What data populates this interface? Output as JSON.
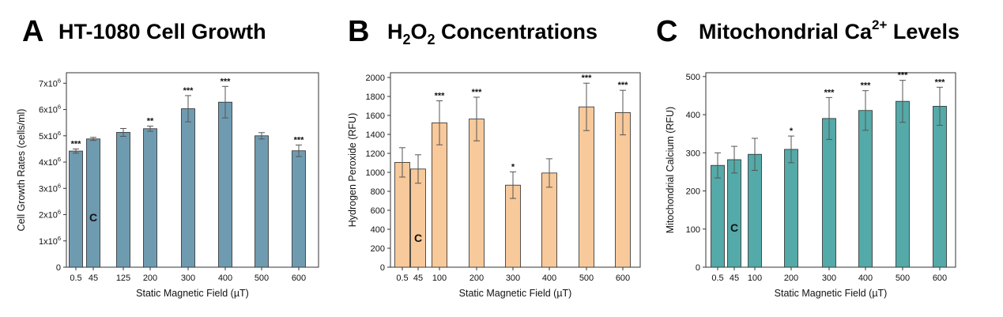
{
  "chart_data": [
    {
      "type": "bar",
      "panel": "A",
      "title": "HT-1080 Cell Growth",
      "xlabel": "Static Magnetic Field (µT)",
      "ylabel": "Cell Growth Rates (cells/ml)",
      "categories": [
        "0.5",
        "45",
        "125",
        "200",
        "300",
        "400",
        "500",
        "600"
      ],
      "values": [
        4.42,
        4.88,
        5.13,
        5.27,
        6.03,
        6.28,
        5.0,
        4.43
      ],
      "errors": [
        0.08,
        0.06,
        0.15,
        0.1,
        0.5,
        0.6,
        0.12,
        0.22
      ],
      "significance": [
        "***",
        "",
        "",
        "**",
        "***",
        "***",
        "",
        "***"
      ],
      "control_label": "C",
      "control_index": 1,
      "ylim": [
        0,
        7.4
      ],
      "yticks": [
        {
          "value": 0,
          "base": "0",
          "exp": ""
        },
        {
          "value": 1,
          "base": "1x10",
          "exp": "6"
        },
        {
          "value": 2,
          "base": "2x10",
          "exp": "6"
        },
        {
          "value": 3,
          "base": "3x10",
          "exp": "6"
        },
        {
          "value": 4,
          "base": "4x10",
          "exp": "6"
        },
        {
          "value": 5,
          "base": "5x10",
          "exp": "6"
        },
        {
          "value": 6,
          "base": "6x10",
          "exp": "6"
        },
        {
          "value": 7,
          "base": "7x10",
          "exp": "6"
        }
      ],
      "color": "#6f9bb1"
    },
    {
      "type": "bar",
      "panel": "B",
      "title_parts": [
        "H",
        "2",
        "O",
        "2",
        " Concentrations"
      ],
      "xlabel": "Static Magnetic Field (µT)",
      "ylabel": "Hydrogen Peroxide (RFU)",
      "categories": [
        "0.5",
        "45",
        "100",
        "200",
        "300",
        "400",
        "500",
        "600"
      ],
      "values": [
        1105,
        1035,
        1522,
        1562,
        865,
        993,
        1690,
        1630
      ],
      "errors": [
        155,
        150,
        232,
        230,
        140,
        150,
        250,
        235
      ],
      "significance": [
        "",
        "",
        "***",
        "***",
        "*",
        "",
        "***",
        "***"
      ],
      "control_label": "C",
      "control_index": 1,
      "ylim": [
        0,
        2050
      ],
      "yticks": [
        {
          "value": 0,
          "base": "0",
          "exp": ""
        },
        {
          "value": 200,
          "base": "200",
          "exp": ""
        },
        {
          "value": 400,
          "base": "400",
          "exp": ""
        },
        {
          "value": 600,
          "base": "600",
          "exp": ""
        },
        {
          "value": 800,
          "base": "800",
          "exp": ""
        },
        {
          "value": 1000,
          "base": "1000",
          "exp": ""
        },
        {
          "value": 1200,
          "base": "1200",
          "exp": ""
        },
        {
          "value": 1400,
          "base": "1400",
          "exp": ""
        },
        {
          "value": 1600,
          "base": "1600",
          "exp": ""
        },
        {
          "value": 1800,
          "base": "1800",
          "exp": ""
        },
        {
          "value": 2000,
          "base": "2000",
          "exp": ""
        }
      ],
      "color": "#f8c99a"
    },
    {
      "type": "bar",
      "panel": "C",
      "title_parts": [
        "Mitochondrial Ca",
        "2+",
        " Levels"
      ],
      "xlabel": "Static Magnetic Field (µT)",
      "ylabel": "Mitochondrial Calcium (RFU)",
      "categories": [
        "0.5",
        "45",
        "100",
        "200",
        "300",
        "400",
        "500",
        "600"
      ],
      "values": [
        267,
        282,
        296,
        309,
        390,
        411,
        435,
        422
      ],
      "errors": [
        33,
        35,
        42,
        35,
        55,
        52,
        55,
        50
      ],
      "significance": [
        "",
        "",
        "",
        "*",
        "***",
        "***",
        "***",
        "***"
      ],
      "control_label": "C",
      "control_index": 1,
      "ylim": [
        0,
        510
      ],
      "yticks": [
        {
          "value": 0,
          "base": "0",
          "exp": ""
        },
        {
          "value": 100,
          "base": "100",
          "exp": ""
        },
        {
          "value": 200,
          "base": "200",
          "exp": ""
        },
        {
          "value": 300,
          "base": "300",
          "exp": ""
        },
        {
          "value": 400,
          "base": "400",
          "exp": ""
        },
        {
          "value": 500,
          "base": "500",
          "exp": ""
        }
      ],
      "color": "#54aaa8"
    }
  ]
}
